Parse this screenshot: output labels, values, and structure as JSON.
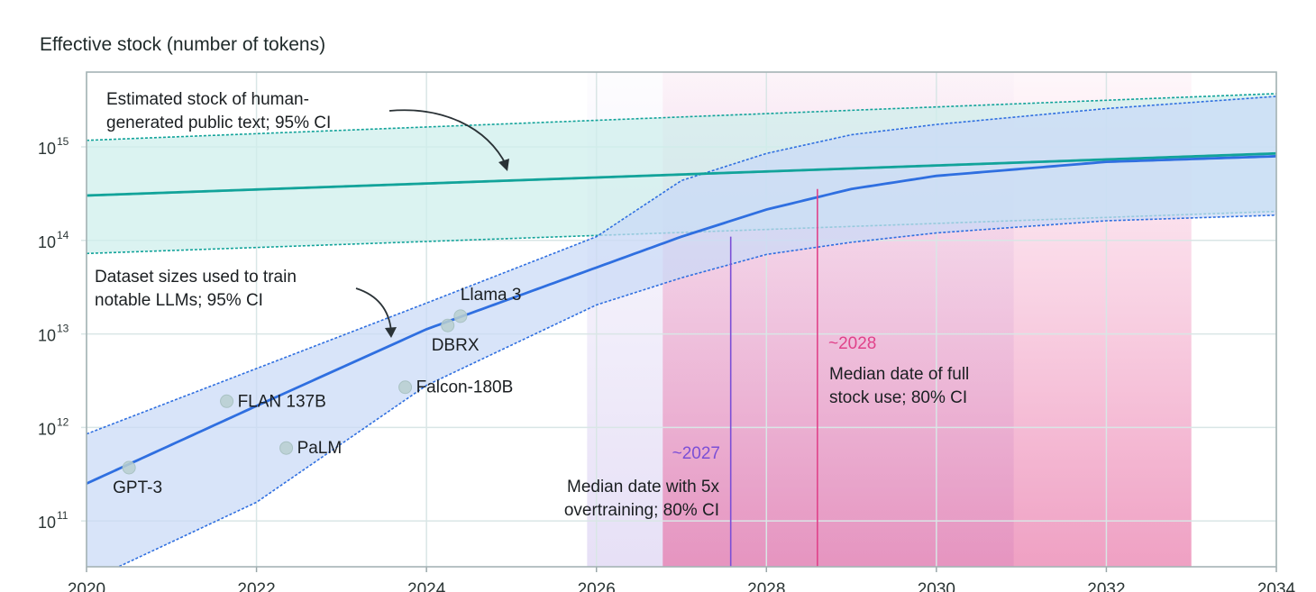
{
  "chart_data": {
    "type": "line",
    "title": "Effective stock (number of tokens)",
    "xlabel": "",
    "ylabel": "",
    "y_scale": "log",
    "xlim": [
      2020,
      2034
    ],
    "ylim_log10": [
      10.51,
      15.8
    ],
    "x_ticks": [
      "2020",
      "2022",
      "2024",
      "2026",
      "2028",
      "2030",
      "2032",
      "2034"
    ],
    "y_ticks": [
      {
        "exp": "11",
        "base": "10"
      },
      {
        "exp": "12",
        "base": "10"
      },
      {
        "exp": "13",
        "base": "10"
      },
      {
        "exp": "14",
        "base": "10"
      },
      {
        "exp": "15",
        "base": "10"
      }
    ],
    "grid": true,
    "stock": {
      "label_lines": [
        "Estimated stock of human-",
        "generated public text; 95% CI"
      ],
      "color": "#12a39a",
      "band_color": "#cdeeeb",
      "x": [
        2020,
        2034
      ],
      "median_log10": [
        14.48,
        14.93
      ],
      "upper_log10": [
        15.07,
        15.57
      ],
      "lower_log10": [
        13.86,
        14.31
      ]
    },
    "datasets": {
      "label_lines": [
        "Dataset sizes used to train",
        "notable LLMs; 95% CI"
      ],
      "color": "#2f6fe0",
      "band_color": "#c9daf6",
      "x": [
        2020,
        2022,
        2024,
        2026,
        2027,
        2028,
        2029,
        2030,
        2032,
        2034
      ],
      "median_log10": [
        11.4,
        12.23,
        13.05,
        13.71,
        14.04,
        14.33,
        14.55,
        14.69,
        14.84,
        14.9
      ],
      "upper_log10": [
        11.93,
        12.63,
        13.33,
        14.04,
        14.64,
        14.93,
        15.13,
        15.24,
        15.41,
        15.54
      ],
      "lower_log10": [
        10.35,
        11.2,
        12.45,
        13.31,
        13.6,
        13.85,
        13.98,
        14.08,
        14.21,
        14.27
      ]
    },
    "models": [
      {
        "name": "GPT-3",
        "x": 2020.5,
        "log10": 11.57,
        "label_pos": "below"
      },
      {
        "name": "FLAN 137B",
        "x": 2021.65,
        "log10": 12.28,
        "label_pos": "right"
      },
      {
        "name": "PaLM",
        "x": 2022.35,
        "log10": 11.78,
        "label_pos": "right"
      },
      {
        "name": "Falcon-180B",
        "x": 2023.75,
        "log10": 12.43,
        "label_pos": "right"
      },
      {
        "name": "DBRX",
        "x": 2024.25,
        "log10": 13.09,
        "label_pos": "below"
      },
      {
        "name": "Llama 3",
        "x": 2024.4,
        "log10": 13.19,
        "label_pos": "above"
      }
    ],
    "overtraining": {
      "median_label": "~2027",
      "label_lines": [
        "Median date with 5x",
        "overtraining; 80% CI"
      ],
      "median": 2027.58,
      "ci": [
        2025.89,
        2030.91
      ],
      "color": "#7b4fd6"
    },
    "full_use": {
      "median_label": "~2028",
      "label_lines": [
        "Median date of full",
        "stock use; 80% CI"
      ],
      "median": 2028.6,
      "ci": [
        2026.78,
        2033.0
      ],
      "color": "#e0428a"
    }
  }
}
